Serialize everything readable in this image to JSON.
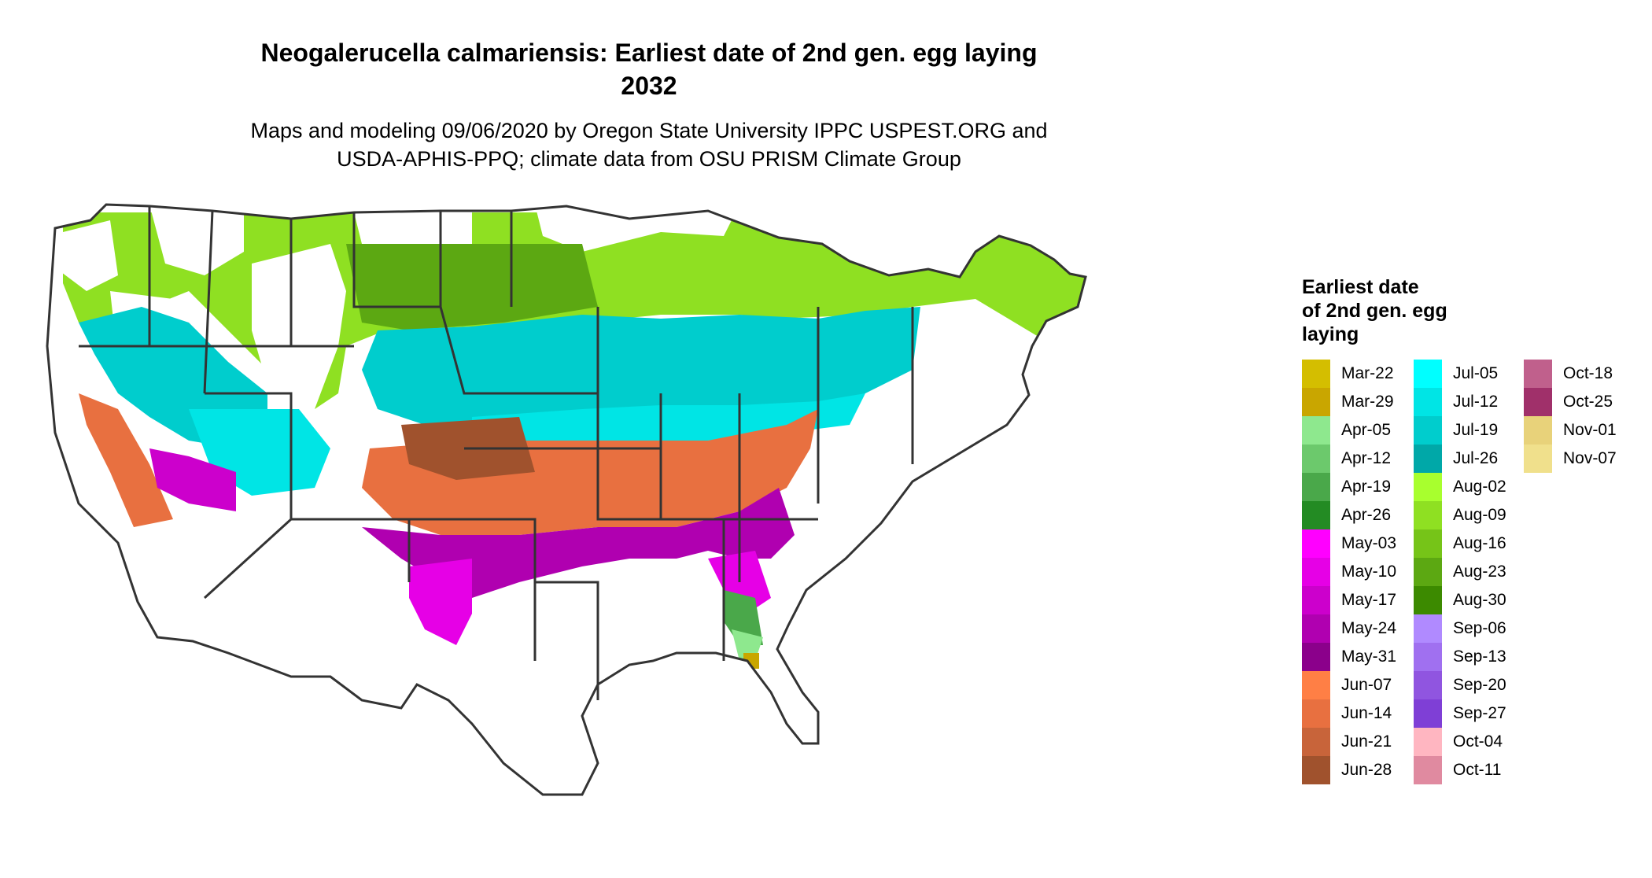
{
  "title": {
    "line1": "Neogalerucella calmariensis: Earliest date of 2nd gen. egg laying",
    "line2": "2032"
  },
  "subtitle": {
    "line1": "Maps and modeling 09/06/2020 by Oregon State University IPPC USPEST.ORG and",
    "line2": "USDA-APHIS-PPQ; climate data from OSU PRISM Climate Group"
  },
  "legend": {
    "title_lines": [
      "Earliest date",
      "of 2nd gen. egg",
      "laying"
    ],
    "columns": [
      [
        {
          "label": "Mar-22",
          "color": "#D4BE00"
        },
        {
          "label": "Mar-29",
          "color": "#C9A600"
        },
        {
          "label": "Apr-05",
          "color": "#8EE88E"
        },
        {
          "label": "Apr-12",
          "color": "#6CC96C"
        },
        {
          "label": "Apr-19",
          "color": "#4AA84A"
        },
        {
          "label": "Apr-26",
          "color": "#238B23"
        },
        {
          "label": "May-03",
          "color": "#FF00FF"
        },
        {
          "label": "May-10",
          "color": "#E600E6"
        },
        {
          "label": "May-17",
          "color": "#CC00CC"
        },
        {
          "label": "May-24",
          "color": "#B000B0"
        },
        {
          "label": "May-31",
          "color": "#8B008B"
        },
        {
          "label": "Jun-07",
          "color": "#FF7F45"
        },
        {
          "label": "Jun-14",
          "color": "#E87040"
        },
        {
          "label": "Jun-21",
          "color": "#C8643A"
        },
        {
          "label": "Jun-28",
          "color": "#A0522D"
        }
      ],
      [
        {
          "label": "Jul-05",
          "color": "#00FFFF"
        },
        {
          "label": "Jul-12",
          "color": "#00E5E5"
        },
        {
          "label": "Jul-19",
          "color": "#00CDCD"
        },
        {
          "label": "Jul-26",
          "color": "#00A8A8"
        },
        {
          "label": "Aug-02",
          "color": "#A8FF2E"
        },
        {
          "label": "Aug-09",
          "color": "#8FE022"
        },
        {
          "label": "Aug-16",
          "color": "#76C418"
        },
        {
          "label": "Aug-23",
          "color": "#5CA812"
        },
        {
          "label": "Aug-30",
          "color": "#3C8A00"
        },
        {
          "label": "Sep-06",
          "color": "#B08AFF"
        },
        {
          "label": "Sep-13",
          "color": "#A070F0"
        },
        {
          "label": "Sep-20",
          "color": "#9055E0"
        },
        {
          "label": "Sep-27",
          "color": "#7F3FD6"
        },
        {
          "label": "Oct-04",
          "color": "#FFB6C1"
        },
        {
          "label": "Oct-11",
          "color": "#E08AA0"
        }
      ],
      [
        {
          "label": "Oct-18",
          "color": "#C0608C"
        },
        {
          "label": "Oct-25",
          "color": "#A0306A"
        },
        {
          "label": "Nov-01",
          "color": "#E8D27A"
        },
        {
          "label": "Nov-07",
          "color": "#F0E08C"
        }
      ]
    ]
  }
}
